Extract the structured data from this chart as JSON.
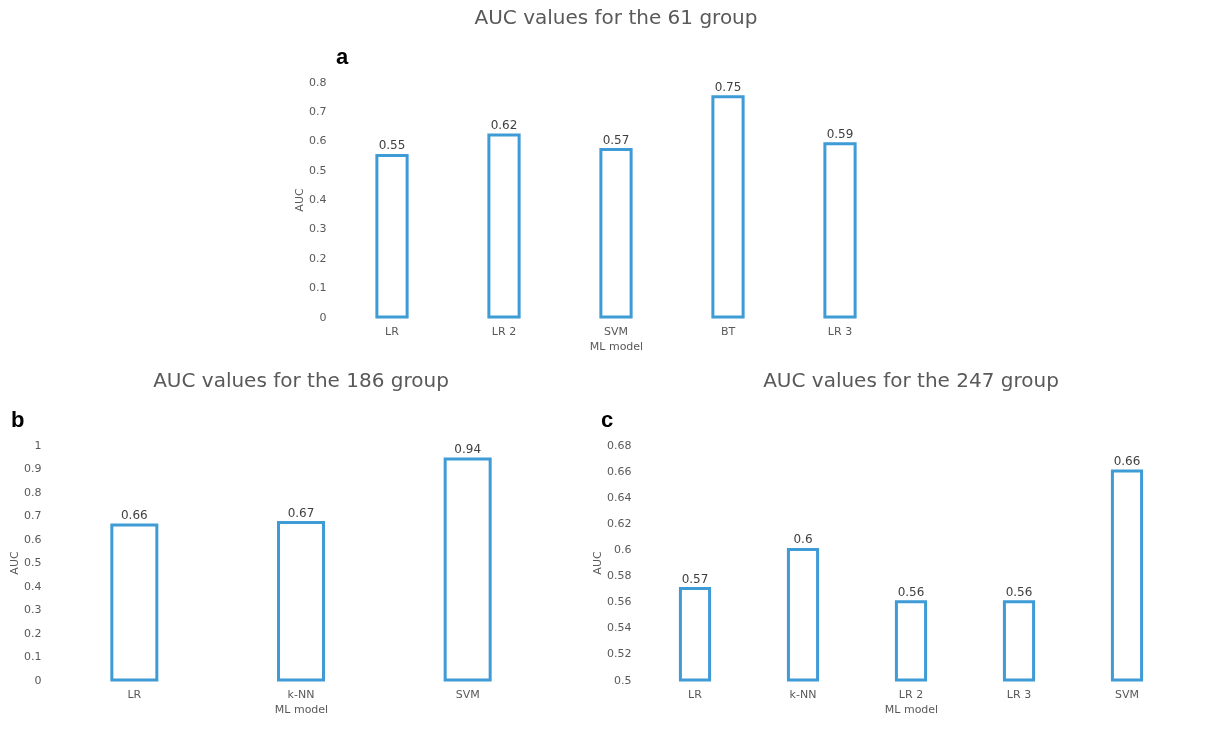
{
  "chart_data": [
    {
      "type": "bar",
      "title": "AUC values for the 61 group",
      "xlabel": "ML model",
      "ylabel": "AUC",
      "annotations": [
        "a"
      ],
      "categories": [
        "LR",
        "LR 2",
        "SVM",
        "BT",
        "LR 3"
      ],
      "series": [
        {
          "color": "#3e9bd6",
          "values": [
            0.55,
            0.62,
            0.57,
            0.75,
            0.59
          ]
        }
      ],
      "ylim": [
        0,
        0.8
      ],
      "yticks": [
        0,
        0.1,
        0.2,
        0.3,
        0.4,
        0.5,
        0.6,
        0.7,
        0.8
      ],
      "grid": false,
      "data_labels": true
    },
    {
      "type": "bar",
      "title": "AUC values for the 186 group",
      "xlabel": "ML model",
      "ylabel": "AUC",
      "annotations": [
        "b"
      ],
      "categories": [
        "LR",
        "k-NN",
        "SVM"
      ],
      "series": [
        {
          "color": "#3e9bd6",
          "values": [
            0.66,
            0.67,
            0.94
          ]
        }
      ],
      "ylim": [
        0,
        1
      ],
      "yticks": [
        0,
        0.1,
        0.2,
        0.3,
        0.4,
        0.5,
        0.6,
        0.7,
        0.8,
        0.9,
        1
      ],
      "grid": false,
      "data_labels": true
    },
    {
      "type": "bar",
      "title": "AUC values for the 247 group",
      "xlabel": "ML model",
      "ylabel": "AUC",
      "annotations": [
        "c"
      ],
      "categories": [
        "LR",
        "k-NN",
        "LR 2",
        "LR 3",
        "SVM"
      ],
      "series": [
        {
          "color": "#3e9bd6",
          "values": [
            0.57,
            0.6,
            0.56,
            0.56,
            0.66
          ]
        }
      ],
      "ylim": [
        0.5,
        0.68
      ],
      "yticks": [
        0.5,
        0.52,
        0.54,
        0.56,
        0.58,
        0.6,
        0.62,
        0.64,
        0.66,
        0.68
      ],
      "grid": false,
      "data_labels": true
    }
  ]
}
